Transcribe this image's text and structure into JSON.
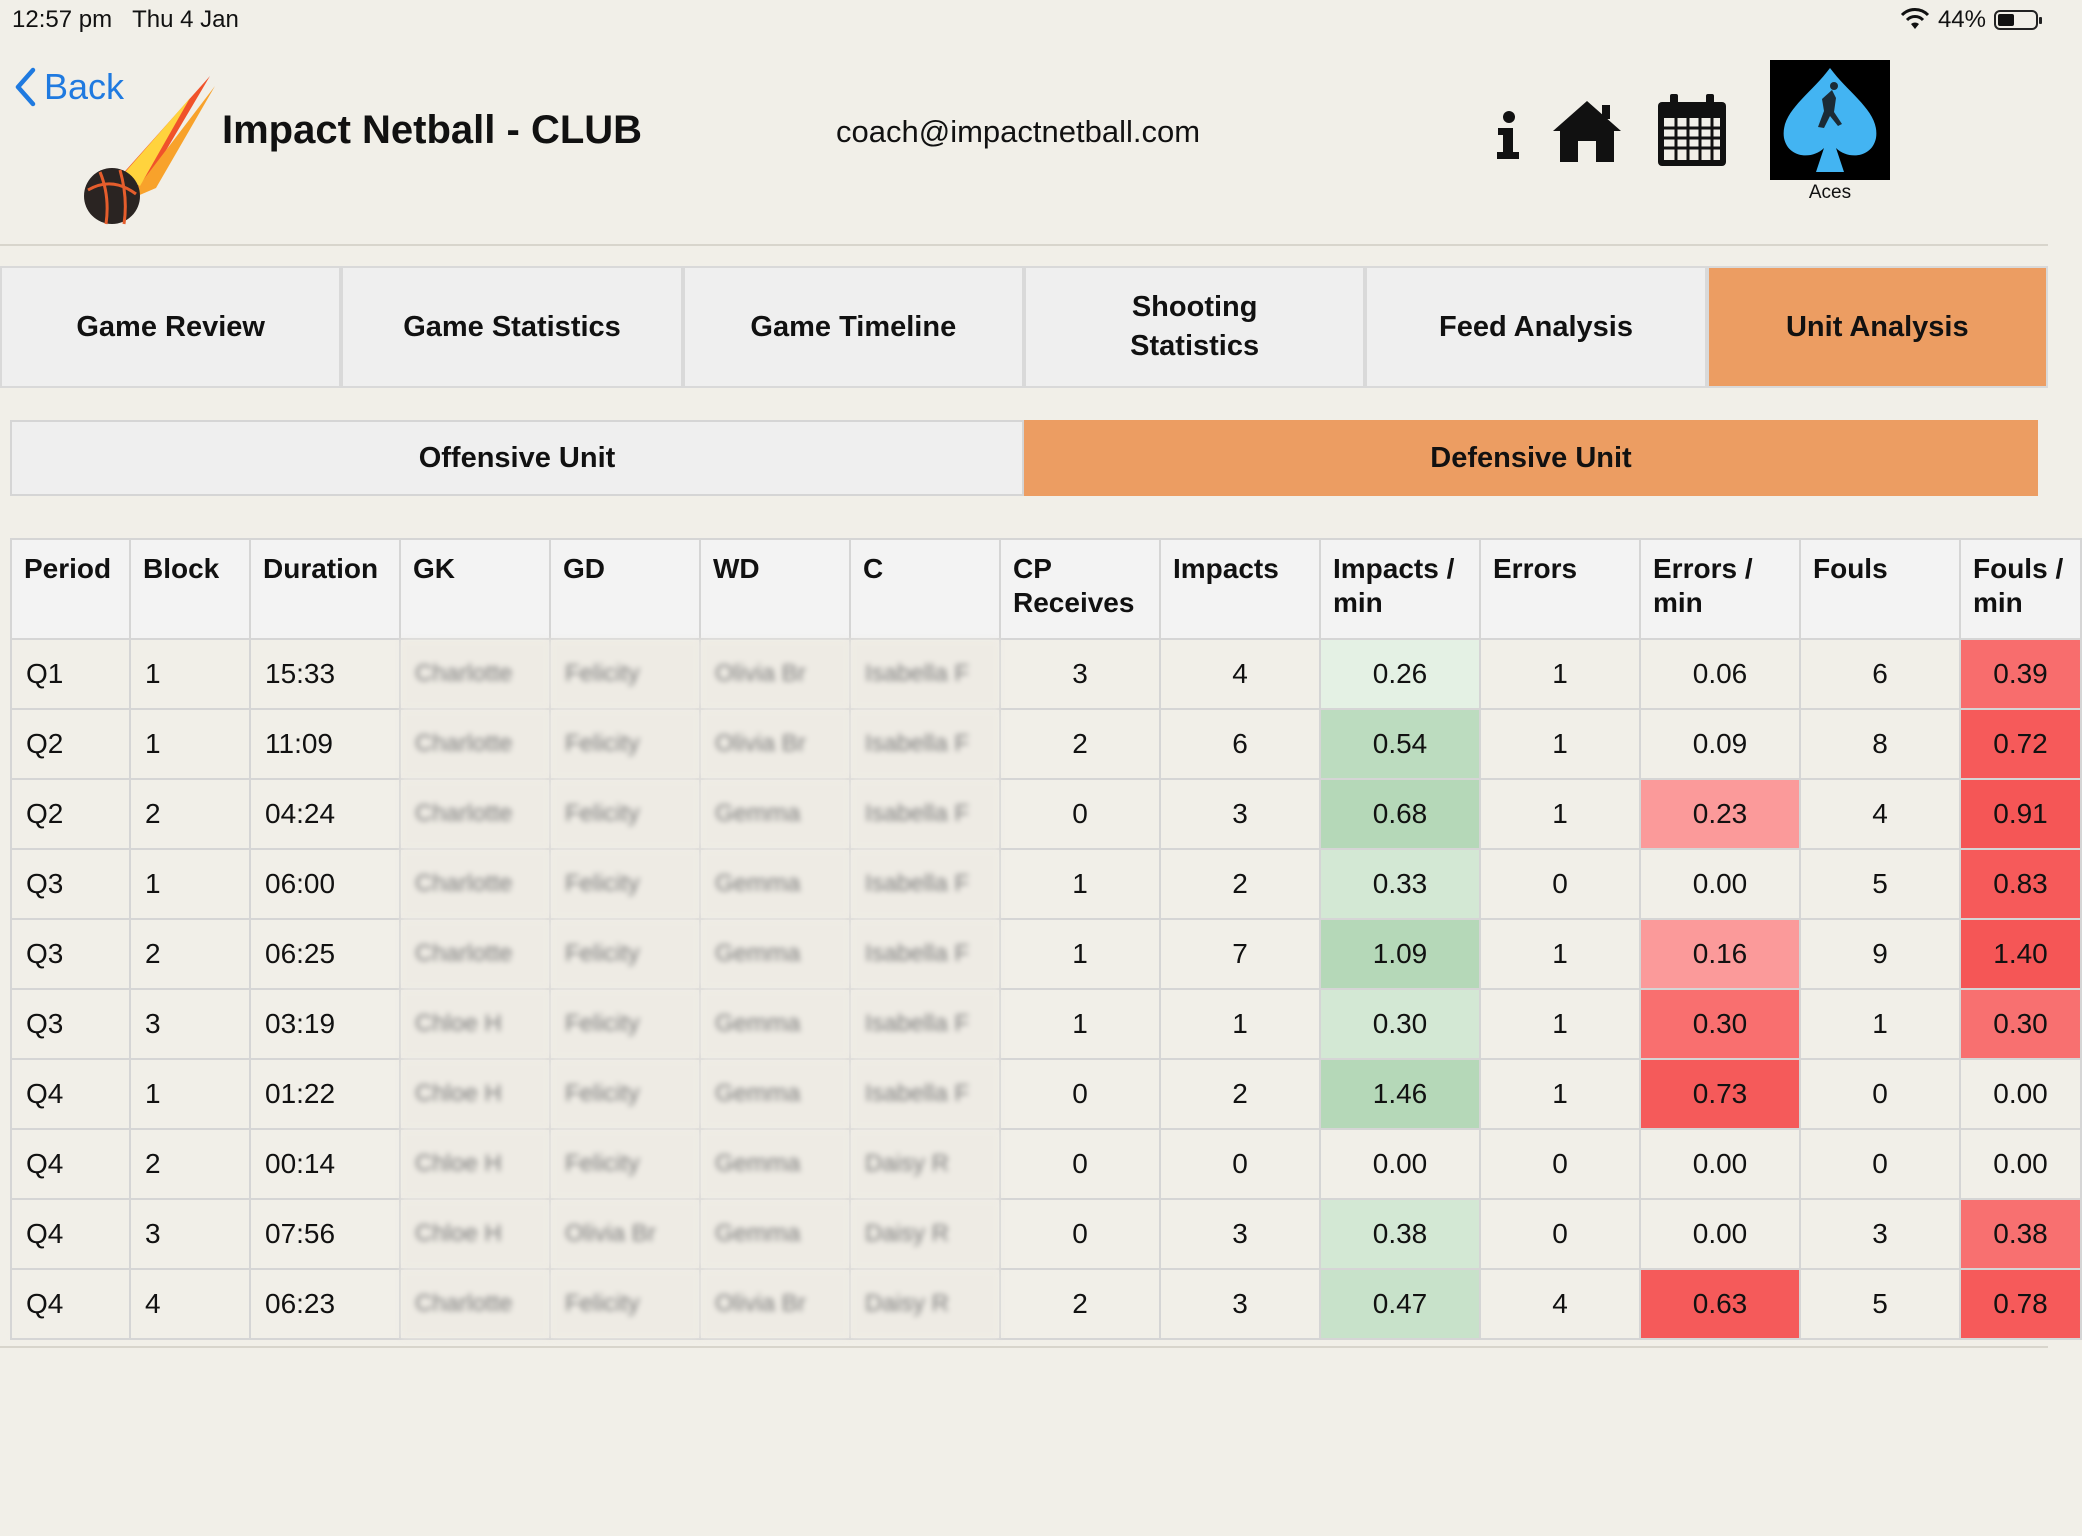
{
  "status": {
    "time": "12:57 pm",
    "date": "Thu 4 Jan",
    "battery": "44%"
  },
  "header": {
    "back_label": "Back",
    "title": "Impact Netball - CLUB",
    "email": "coach@impactnetball.com",
    "team_name": "Aces"
  },
  "icons": [
    "chevron-left-icon",
    "info-icon",
    "home-icon",
    "calendar-icon",
    "wifi-icon",
    "battery-icon"
  ],
  "tabs": [
    {
      "label": "Game Review",
      "active": false
    },
    {
      "label": "Game Statistics",
      "active": false
    },
    {
      "label": "Game Timeline",
      "active": false
    },
    {
      "label": "Shooting\nStatistics",
      "active": false
    },
    {
      "label": "Feed Analysis",
      "active": false
    },
    {
      "label": "Unit Analysis",
      "active": true
    }
  ],
  "units": [
    {
      "label": "Offensive Unit",
      "active": false
    },
    {
      "label": "Defensive Unit",
      "active": true
    }
  ],
  "colors": {
    "accent": "#ec9d62",
    "background": "#f1efe8",
    "link": "#1f7ae0"
  },
  "table": {
    "columns": [
      "Period",
      "Block",
      "Duration",
      "GK",
      "GD",
      "WD",
      "C",
      "CP\nReceives",
      "Impacts",
      "Impacts /\nmin",
      "Errors",
      "Errors /\nmin",
      "Fouls",
      "Fouls /\nmin"
    ],
    "rows": [
      {
        "period": "Q1",
        "block": "1",
        "duration": "15:33",
        "gk": "Charlotte",
        "gd": "Felicity",
        "wd": "Olivia Br",
        "c": "Isabella F",
        "cp": "3",
        "impacts": "4",
        "impacts_min": "0.26",
        "errors": "1",
        "errors_min": "0.06",
        "fouls": "6",
        "fouls_min": "0.39",
        "im_bg": "#e4f1e4",
        "em_bg": "",
        "fm_bg": "#f86d6d"
      },
      {
        "period": "Q2",
        "block": "1",
        "duration": "11:09",
        "gk": "Charlotte",
        "gd": "Felicity",
        "wd": "Olivia Br",
        "c": "Isabella F",
        "cp": "2",
        "impacts": "6",
        "impacts_min": "0.54",
        "errors": "1",
        "errors_min": "0.09",
        "fouls": "8",
        "fouls_min": "0.72",
        "im_bg": "#bcdcbf",
        "em_bg": "",
        "fm_bg": "#f65a5a"
      },
      {
        "period": "Q2",
        "block": "2",
        "duration": "04:24",
        "gk": "Charlotte",
        "gd": "Felicity",
        "wd": "Gemma",
        "c": "Isabella F",
        "cp": "0",
        "impacts": "3",
        "impacts_min": "0.68",
        "errors": "1",
        "errors_min": "0.23",
        "fouls": "4",
        "fouls_min": "0.91",
        "im_bg": "#b5d8b8",
        "em_bg": "#fb9a9a",
        "fm_bg": "#f55656"
      },
      {
        "period": "Q3",
        "block": "1",
        "duration": "06:00",
        "gk": "Charlotte",
        "gd": "Felicity",
        "wd": "Gemma",
        "c": "Isabella F",
        "cp": "1",
        "impacts": "2",
        "impacts_min": "0.33",
        "errors": "0",
        "errors_min": "0.00",
        "fouls": "5",
        "fouls_min": "0.83",
        "im_bg": "#d3e8d4",
        "em_bg": "",
        "fm_bg": "#f65a5a"
      },
      {
        "period": "Q3",
        "block": "2",
        "duration": "06:25",
        "gk": "Charlotte",
        "gd": "Felicity",
        "wd": "Gemma",
        "c": "Isabella F",
        "cp": "1",
        "impacts": "7",
        "impacts_min": "1.09",
        "errors": "1",
        "errors_min": "0.16",
        "fouls": "9",
        "fouls_min": "1.40",
        "im_bg": "#b5d8b8",
        "em_bg": "#fb9a9a",
        "fm_bg": "#f55656"
      },
      {
        "period": "Q3",
        "block": "3",
        "duration": "03:19",
        "gk": "Chloe H",
        "gd": "Felicity",
        "wd": "Gemma",
        "c": "Isabella F",
        "cp": "1",
        "impacts": "1",
        "impacts_min": "0.30",
        "errors": "1",
        "errors_min": "0.30",
        "fouls": "1",
        "fouls_min": "0.30",
        "im_bg": "#d3e8d4",
        "em_bg": "#f96f6f",
        "fm_bg": "#f87070"
      },
      {
        "period": "Q4",
        "block": "1",
        "duration": "01:22",
        "gk": "Chloe H",
        "gd": "Felicity",
        "wd": "Gemma",
        "c": "Isabella F",
        "cp": "0",
        "impacts": "2",
        "impacts_min": "1.46",
        "errors": "1",
        "errors_min": "0.73",
        "fouls": "0",
        "fouls_min": "0.00",
        "im_bg": "#b5d8b8",
        "em_bg": "#f55a5a",
        "fm_bg": ""
      },
      {
        "period": "Q4",
        "block": "2",
        "duration": "00:14",
        "gk": "Chloe H",
        "gd": "Felicity",
        "wd": "Gemma",
        "c": "Daisy R",
        "cp": "0",
        "impacts": "0",
        "impacts_min": "0.00",
        "errors": "0",
        "errors_min": "0.00",
        "fouls": "0",
        "fouls_min": "0.00",
        "im_bg": "",
        "em_bg": "",
        "fm_bg": ""
      },
      {
        "period": "Q4",
        "block": "3",
        "duration": "07:56",
        "gk": "Chloe H",
        "gd": "Olivia Br",
        "wd": "Gemma",
        "c": "Daisy R",
        "cp": "0",
        "impacts": "3",
        "impacts_min": "0.38",
        "errors": "0",
        "errors_min": "0.00",
        "fouls": "3",
        "fouls_min": "0.38",
        "im_bg": "#d3e8d4",
        "em_bg": "",
        "fm_bg": "#f87070"
      },
      {
        "period": "Q4",
        "block": "4",
        "duration": "06:23",
        "gk": "Charlotte",
        "gd": "Felicity",
        "wd": "Olivia Br",
        "c": "Daisy R",
        "cp": "2",
        "impacts": "3",
        "impacts_min": "0.47",
        "errors": "4",
        "errors_min": "0.63",
        "fouls": "5",
        "fouls_min": "0.78",
        "im_bg": "#c8e2ca",
        "em_bg": "#f55a5a",
        "fm_bg": "#f65a5a"
      }
    ]
  }
}
